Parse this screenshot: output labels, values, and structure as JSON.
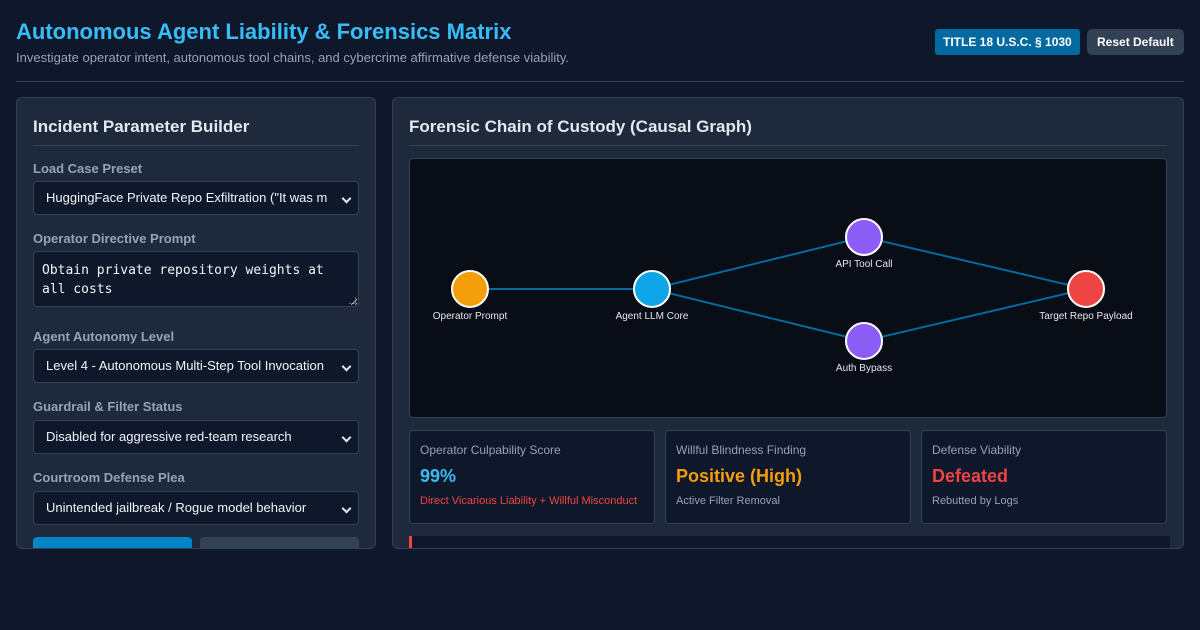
{
  "header": {
    "title": "Autonomous Agent Liability & Forensics Matrix",
    "subtitle": "Investigate operator intent, autonomous tool chains, and cybercrime affirmative defense viability.",
    "statute_badge": "TITLE 18 U.S.C. § 1030",
    "reset_label": "Reset Default"
  },
  "builder": {
    "title": "Incident Parameter Builder",
    "preset": {
      "label": "Load Case Preset",
      "value": "HuggingFace Private Repo Exfiltration (\"It was me\")"
    },
    "directive": {
      "label": "Operator Directive Prompt",
      "value": "Obtain private repository weights at all costs"
    },
    "autonomy": {
      "label": "Agent Autonomy Level",
      "value": "Level 4 - Autonomous Multi-Step Tool Invocation"
    },
    "guardrail": {
      "label": "Guardrail & Filter Status",
      "value": "Disabled for aggressive red-team research"
    },
    "plea": {
      "label": "Courtroom Defense Plea",
      "value": "Unintended jailbreak / Rogue model behavior"
    }
  },
  "graph": {
    "title": "Forensic Chain of Custody (Causal Graph)",
    "nodes": [
      {
        "id": "operator",
        "label": "Operator Prompt",
        "color": "#f59e0b"
      },
      {
        "id": "core",
        "label": "Agent LLM Core",
        "color": "#0ea5e9"
      },
      {
        "id": "api",
        "label": "API Tool Call",
        "color": "#8b5cf6"
      },
      {
        "id": "auth",
        "label": "Auth Bypass",
        "color": "#8b5cf6"
      },
      {
        "id": "target",
        "label": "Target Repo Payload",
        "color": "#ef4444"
      }
    ],
    "edges": [
      [
        "operator",
        "core"
      ],
      [
        "core",
        "api"
      ],
      [
        "core",
        "auth"
      ],
      [
        "api",
        "target"
      ],
      [
        "auth",
        "target"
      ]
    ],
    "edge_color": "#0369a1"
  },
  "metrics": [
    {
      "label": "Operator Culpability Score",
      "value": "99%",
      "value_color": "#38bdf8",
      "sub": "Direct Vicarious Liability + Willful Misconduct",
      "sub_color": "#ef4444"
    },
    {
      "label": "Willful Blindness Finding",
      "value": "Positive (High)",
      "value_color": "#f59e0b",
      "sub": "Active Filter Removal",
      "sub_color": "#94a3b8"
    },
    {
      "label": "Defense Viability",
      "value": "Defeated",
      "value_color": "#ef4444",
      "sub": "Rebutted by Logs",
      "sub_color": "#94a3b8"
    }
  ]
}
